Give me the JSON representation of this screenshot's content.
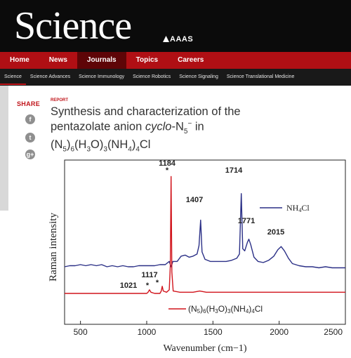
{
  "brand": {
    "logo": "Science",
    "publisher": "AAAS"
  },
  "main_nav": [
    "Home",
    "News",
    "Journals",
    "Topics",
    "Careers"
  ],
  "main_nav_active": "Journals",
  "sub_nav": [
    "Science",
    "Science Advances",
    "Science Immunology",
    "Science Robotics",
    "Science Signaling",
    "Science Translational Medicine"
  ],
  "sub_nav_active": "Science",
  "share": {
    "label": "SHARE",
    "icons": [
      "facebook-icon",
      "twitter-icon",
      "google-plus-icon"
    ],
    "glyphs": [
      "f",
      "t",
      "g+"
    ]
  },
  "article": {
    "type": "REPORT",
    "title_line1": "Synthesis and characterization of the",
    "title_line2_pre": "pentazolate anion ",
    "title_line2_italic": "cyclo",
    "title_line2_post": "-N",
    "title_sub5": "5",
    "title_sup": "−",
    "title_line2_end": " in",
    "formula_parts": [
      "(N",
      "5",
      ")",
      "6",
      "(H",
      "3",
      "O)",
      "3",
      "(NH",
      "4",
      ")",
      "4",
      "Cl"
    ]
  },
  "colors": {
    "brand_red": "#b00f14",
    "dark": "#0b0b0b",
    "nh4cl_series": "#2a2f86",
    "compound_series": "#d1141c"
  },
  "chart_data": {
    "type": "line",
    "xlabel": "Wavenumber (cm−1)",
    "ylabel": "Raman intensity",
    "xlim": [
      380,
      2500
    ],
    "xticks": [
      500,
      1000,
      1500,
      2000,
      2500
    ],
    "series": [
      {
        "name": "NH4Cl",
        "color": "#2a2f86",
        "x": [
          380,
          420,
          460,
          500,
          540,
          580,
          620,
          660,
          700,
          740,
          780,
          820,
          860,
          900,
          940,
          980,
          1020,
          1060,
          1100,
          1140,
          1170,
          1184,
          1198,
          1230,
          1260,
          1290,
          1320,
          1350,
          1380,
          1395,
          1407,
          1418,
          1440,
          1480,
          1520,
          1560,
          1600,
          1640,
          1680,
          1700,
          1714,
          1725,
          1740,
          1760,
          1771,
          1785,
          1810,
          1840,
          1880,
          1920,
          1960,
          1990,
          2015,
          2040,
          2070,
          2100,
          2150,
          2200,
          2250,
          2300,
          2350,
          2400,
          2450,
          2500
        ],
        "y": [
          0.19,
          0.2,
          0.2,
          0.21,
          0.2,
          0.21,
          0.2,
          0.21,
          0.19,
          0.2,
          0.19,
          0.2,
          0.19,
          0.19,
          0.2,
          0.2,
          0.2,
          0.2,
          0.21,
          0.21,
          0.24,
          0.19,
          0.24,
          0.24,
          0.29,
          0.3,
          0.28,
          0.29,
          0.31,
          0.39,
          0.63,
          0.33,
          0.26,
          0.24,
          0.24,
          0.24,
          0.24,
          0.25,
          0.27,
          0.31,
          0.88,
          0.36,
          0.34,
          0.42,
          0.45,
          0.4,
          0.28,
          0.24,
          0.23,
          0.25,
          0.29,
          0.35,
          0.38,
          0.34,
          0.27,
          0.22,
          0.2,
          0.19,
          0.19,
          0.18,
          0.19,
          0.18,
          0.18,
          0.18
        ]
      },
      {
        "name": "(N5)6(H3O)3(NH4)4Cl",
        "color": "#d1141c",
        "x": [
          380,
          450,
          500,
          550,
          600,
          650,
          700,
          750,
          800,
          850,
          900,
          950,
          1000,
          1010,
          1021,
          1032,
          1060,
          1100,
          1110,
          1117,
          1125,
          1150,
          1170,
          1178,
          1184,
          1190,
          1200,
          1250,
          1300,
          1350,
          1400,
          1450,
          1500,
          1600,
          1700,
          1800,
          1900,
          2000,
          2100,
          2200,
          2300,
          2400,
          2500
        ],
        "y": [
          0.02,
          0.02,
          0.02,
          0.02,
          0.02,
          0.02,
          0.02,
          0.02,
          0.02,
          0.02,
          0.02,
          0.02,
          0.02,
          0.03,
          0.05,
          0.03,
          0.02,
          0.02,
          0.04,
          0.08,
          0.04,
          0.03,
          0.05,
          0.25,
          1.0,
          0.2,
          0.04,
          0.03,
          0.03,
          0.03,
          0.04,
          0.03,
          0.03,
          0.03,
          0.03,
          0.03,
          0.03,
          0.03,
          0.03,
          0.03,
          0.03,
          0.03,
          0.03
        ]
      }
    ],
    "annotations": [
      {
        "text": "1184",
        "x": 1184,
        "y": 1.0,
        "marker": "*"
      },
      {
        "text": "1714",
        "x": 1714,
        "y": 0.88
      },
      {
        "text": "1407",
        "x": 1407,
        "y": 0.63
      },
      {
        "text": "1771",
        "x": 1771,
        "y": 0.45
      },
      {
        "text": "2015",
        "x": 2015,
        "y": 0.38
      },
      {
        "text": "1117",
        "x": 1117,
        "y": 0.08,
        "marker": "*"
      },
      {
        "text": "1021",
        "x": 1021,
        "y": 0.05,
        "marker": "*"
      }
    ],
    "legend_labels": {
      "nh4cl": [
        "NH",
        "4",
        "Cl"
      ],
      "compound": [
        "(N",
        "5",
        ")",
        "6",
        "(H",
        "3",
        "O)",
        "3",
        "(NH",
        "4",
        ")",
        "4",
        "Cl"
      ]
    },
    "grid": false
  }
}
